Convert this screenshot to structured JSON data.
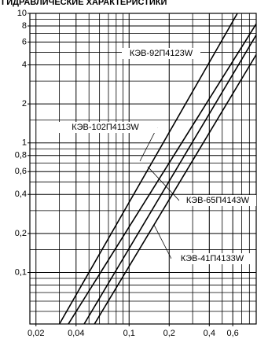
{
  "chart_data": {
    "type": "line",
    "title": "ГИДРАВЛИЧЕСКИЕ ХАРАКТЕРИСТИКИ",
    "log_x": true,
    "log_y": true,
    "grid": true,
    "color": "#000000",
    "xlim": [
      0.018,
      0.9
    ],
    "ylim": [
      0.04,
      10
    ],
    "xticks": [
      {
        "value": 0.02,
        "label": "0,02"
      },
      {
        "value": 0.04,
        "label": "0,04"
      },
      {
        "value": 0.1,
        "label": "0,1"
      },
      {
        "value": 0.2,
        "label": "0,2"
      },
      {
        "value": 0.4,
        "label": "0,4"
      },
      {
        "value": 0.6,
        "label": "0,6"
      }
    ],
    "xminor": [
      0.03,
      0.05,
      0.06,
      0.07,
      0.08,
      0.09,
      0.3,
      0.5,
      0.7,
      0.8,
      0.9
    ],
    "yticks": [
      10,
      8,
      6,
      4,
      2,
      1,
      {
        "value": 0.8,
        "label": "0,8"
      },
      {
        "value": 0.6,
        "label": "0,6"
      },
      {
        "value": 0.4,
        "label": "0,4"
      },
      {
        "value": 0.2,
        "label": "0,2"
      },
      {
        "value": 0.1,
        "label": "0,1"
      }
    ],
    "yminor": [
      0.05,
      0.06,
      0.07,
      0.08,
      0.09,
      0.15,
      0.3,
      0.5,
      0.7,
      0.9,
      1.5,
      3,
      5,
      7,
      9
    ],
    "series": [
      {
        "name": "КЭВ-92П4123W",
        "x": [
          0.03,
          0.65
        ],
        "values": [
          0.04,
          10
        ]
      },
      {
        "name": "КЭВ-102П4113W",
        "x": [
          0.035,
          0.9
        ],
        "values": [
          0.04,
          8.3
        ]
      },
      {
        "name": "КЭВ-65П4143W",
        "x": [
          0.046,
          0.9
        ],
        "values": [
          0.04,
          6.8
        ]
      },
      {
        "name": "КЭВ-41П4133W",
        "x": [
          0.055,
          0.9
        ],
        "values": [
          0.04,
          4.8
        ]
      }
    ]
  }
}
